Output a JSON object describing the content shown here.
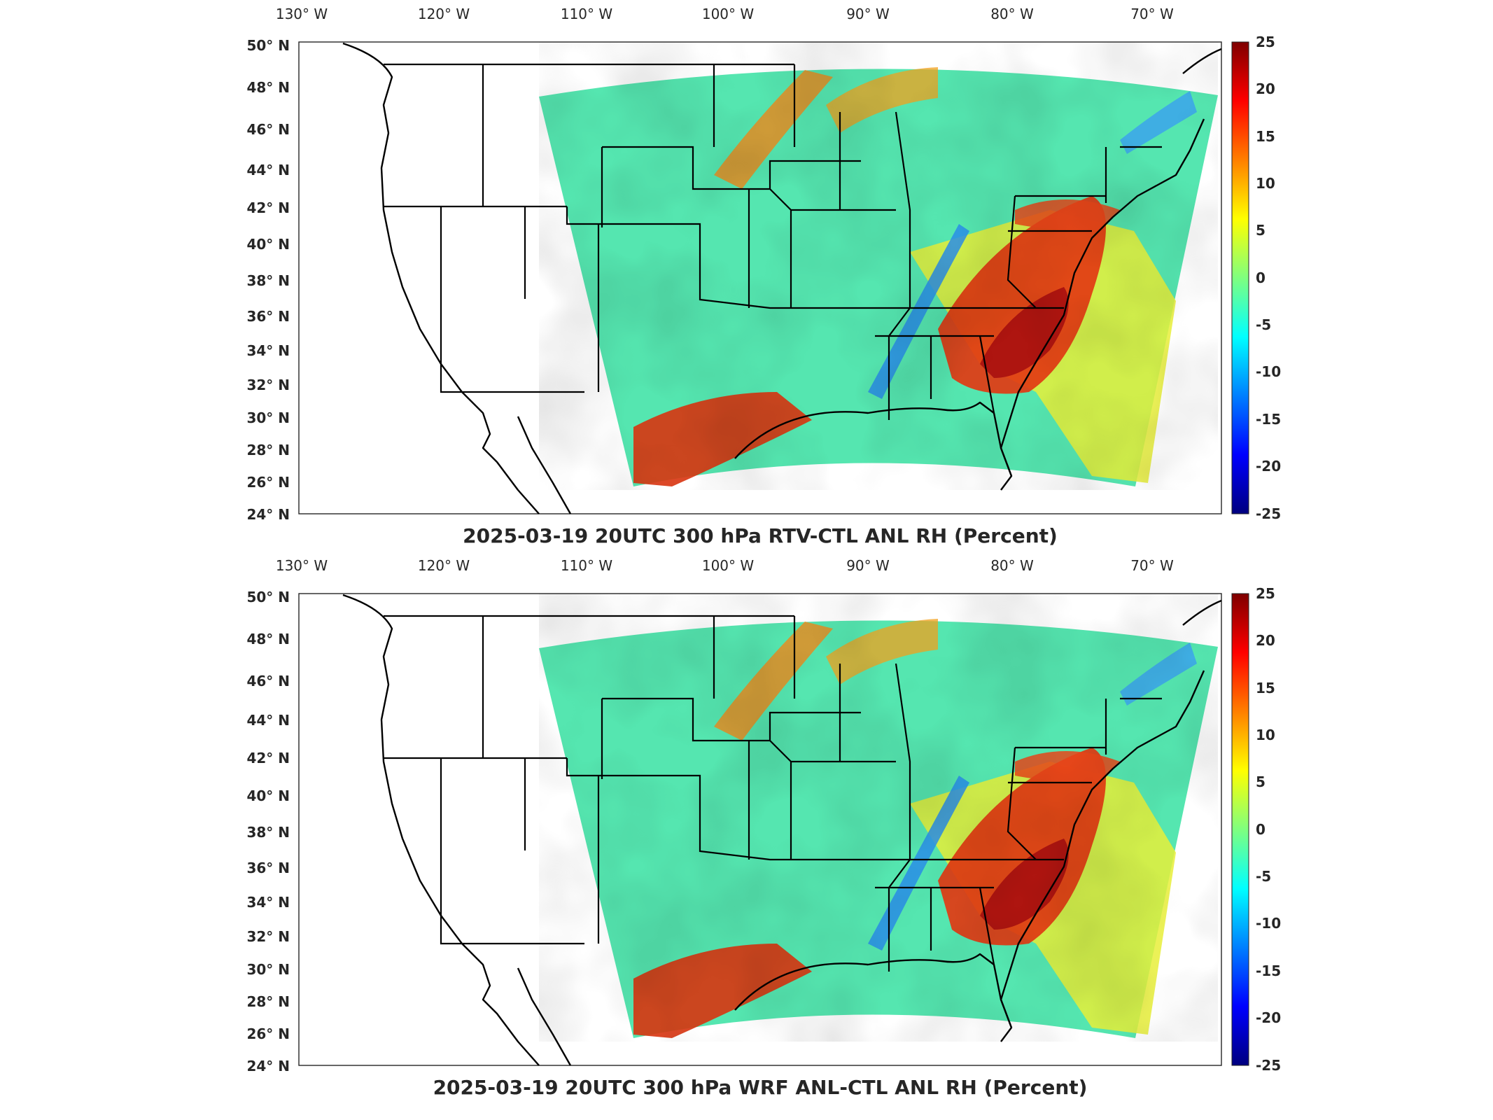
{
  "figure": {
    "panels": [
      {
        "title": "2025-03-19 20UTC 300 hPa RTV-CTL ANL RH (Percent)",
        "field": "RTV-CTL ANL RH",
        "level": "300 hPa",
        "valid_time": "2025-03-19 20UTC",
        "units": "Percent"
      },
      {
        "title": "2025-03-19 20UTC 300 hPa WRF ANL-CTL ANL RH (Percent)",
        "field": "WRF ANL-CTL ANL RH",
        "level": "300 hPa",
        "valid_time": "2025-03-19 20UTC",
        "units": "Percent"
      }
    ],
    "lon_ticks": [
      {
        "value": -130,
        "label": "130° W"
      },
      {
        "value": -120,
        "label": "120° W"
      },
      {
        "value": -110,
        "label": "110° W"
      },
      {
        "value": -100,
        "label": "100° W"
      },
      {
        "value": -90,
        "label": "90° W"
      },
      {
        "value": -80,
        "label": "80° W"
      },
      {
        "value": -70,
        "label": "70° W"
      }
    ],
    "lat_ticks": [
      {
        "value": 50,
        "label": "50° N"
      },
      {
        "value": 48,
        "label": "48° N"
      },
      {
        "value": 46,
        "label": "46° N"
      },
      {
        "value": 44,
        "label": "44° N"
      },
      {
        "value": 42,
        "label": "42° N"
      },
      {
        "value": 40,
        "label": "40° N"
      },
      {
        "value": 38,
        "label": "38° N"
      },
      {
        "value": 36,
        "label": "36° N"
      },
      {
        "value": 34,
        "label": "34° N"
      },
      {
        "value": 32,
        "label": "32° N"
      },
      {
        "value": 30,
        "label": "30° N"
      },
      {
        "value": 28,
        "label": "28° N"
      },
      {
        "value": 26,
        "label": "26° N"
      },
      {
        "value": 24,
        "label": "24° N"
      }
    ],
    "colorbar": {
      "min": -25,
      "max": 25,
      "ticks": [
        "25",
        "20",
        "15",
        "10",
        "5",
        "0",
        "-5",
        "-10",
        "-15",
        "-20",
        "-25"
      ],
      "colormap": [
        "#00007f",
        "#0000ff",
        "#007fff",
        "#00ffff",
        "#7fff7f",
        "#ffff00",
        "#ff7f00",
        "#ff0000",
        "#7f0000"
      ]
    },
    "domain_boundary_color": "#000000",
    "background_color": "#ffffff"
  }
}
